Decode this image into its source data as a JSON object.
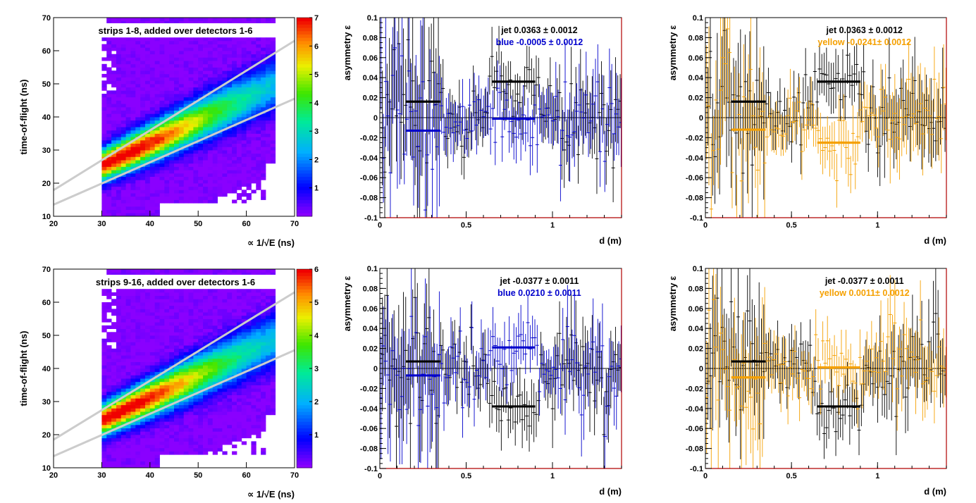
{
  "colors": {
    "jet": "#000000",
    "blue": "#0000cc",
    "yellow": "#f5a000",
    "heatmap_low": "#8a00ff",
    "heatmap_high": "#ff0000",
    "fit_lines": "#cccccc"
  },
  "chart_data": [
    {
      "type": "heatmap",
      "panel": "top-left",
      "title": "strips 1-8, added over detectors 1-6",
      "xlabel": "∝ 1/√E (ns)",
      "ylabel": "time-of-flight (ns)",
      "xlim": [
        20,
        70
      ],
      "ylim": [
        10,
        70
      ],
      "x_ticks": [
        "20",
        "30",
        "40",
        "50",
        "60",
        "70"
      ],
      "y_ticks": [
        "10",
        "20",
        "30",
        "40",
        "50",
        "60",
        "70"
      ],
      "colorbar_ticks": [
        "1",
        "2",
        "3",
        "4",
        "5",
        "6",
        "7"
      ],
      "colorbar_range": [
        0,
        7
      ],
      "band_lines": [
        {
          "x": [
            20,
            70
          ],
          "y": [
            17.9,
            63.0
          ]
        },
        {
          "x": [
            20,
            70
          ],
          "y": [
            13.5,
            45.5
          ]
        }
      ],
      "peak": {
        "x": 34,
        "y": 26
      }
    },
    {
      "type": "heatmap",
      "panel": "bottom-left",
      "title": "strips 9-16, added over detectors 1-6",
      "xlabel": "∝ 1/√E (ns)",
      "ylabel": "time-of-flight (ns)",
      "xlim": [
        20,
        70
      ],
      "ylim": [
        10,
        70
      ],
      "x_ticks": [
        "20",
        "30",
        "40",
        "50",
        "60",
        "70"
      ],
      "y_ticks": [
        "10",
        "20",
        "30",
        "40",
        "50",
        "60",
        "70"
      ],
      "colorbar_ticks": [
        "1",
        "2",
        "3",
        "4",
        "5",
        "6"
      ],
      "colorbar_range": [
        0,
        6
      ],
      "band_lines": [
        {
          "x": [
            20,
            70
          ],
          "y": [
            18.5,
            63.0
          ]
        },
        {
          "x": [
            20,
            70
          ],
          "y": [
            13.5,
            45.5
          ]
        }
      ],
      "peak": {
        "x": 34,
        "y": 25
      }
    },
    {
      "type": "scatter",
      "panel": "top-middle",
      "xlabel": "d (m)",
      "ylabel": "asymmetry ε",
      "xlim": [
        0,
        1.4
      ],
      "ylim": [
        -0.1,
        0.1
      ],
      "x_ticks": [
        "0",
        "0.5",
        "1"
      ],
      "y_ticks": [
        "-0.1",
        "-0.08",
        "-0.06",
        "-0.04",
        "-0.02",
        "0",
        "0.02",
        "0.04",
        "0.06",
        "0.08",
        "0.1"
      ],
      "legend": [
        {
          "name": "jet",
          "text": "jet  0.0363 ± 0.0012",
          "color": "#000000"
        },
        {
          "name": "blue",
          "text": "blue -0.0005 ± 0.0012",
          "color": "#0000cc"
        }
      ],
      "series": [
        {
          "name": "jet",
          "color": "#000000",
          "seed": 11,
          "steps": [
            {
              "x": [
                0.15,
                0.35
              ],
              "y": 0.016
            },
            {
              "x": [
                0.65,
                0.9
              ],
              "y": 0.036
            }
          ]
        },
        {
          "name": "blue",
          "color": "#0000cc",
          "seed": 23,
          "steps": [
            {
              "x": [
                0.15,
                0.35
              ],
              "y": -0.013
            },
            {
              "x": [
                0.65,
                0.9
              ],
              "y": -0.001
            }
          ]
        }
      ]
    },
    {
      "type": "scatter",
      "panel": "top-right",
      "xlabel": "d (m)",
      "ylabel": "asymmetry ε",
      "xlim": [
        0,
        1.4
      ],
      "ylim": [
        -0.1,
        0.1
      ],
      "x_ticks": [
        "0",
        "0.5",
        "1"
      ],
      "y_ticks": [
        "-0.1",
        "-0.08",
        "-0.06",
        "-0.04",
        "-0.02",
        "0",
        "0.02",
        "0.04",
        "0.06",
        "0.08",
        "0.1"
      ],
      "legend": [
        {
          "name": "jet",
          "text": "jet  0.0363 ± 0.0012",
          "color": "#000000"
        },
        {
          "name": "yellow",
          "text": "yellow -0.0241± 0.0012",
          "color": "#f5a000"
        }
      ],
      "series": [
        {
          "name": "jet",
          "color": "#000000",
          "seed": 11,
          "steps": [
            {
              "x": [
                0.15,
                0.35
              ],
              "y": 0.016
            },
            {
              "x": [
                0.65,
                0.9
              ],
              "y": 0.036
            }
          ]
        },
        {
          "name": "yellow",
          "color": "#f5a000",
          "seed": 37,
          "steps": [
            {
              "x": [
                0.15,
                0.35
              ],
              "y": -0.012
            },
            {
              "x": [
                0.65,
                0.9
              ],
              "y": -0.025
            }
          ]
        }
      ]
    },
    {
      "type": "scatter",
      "panel": "bottom-middle",
      "xlabel": "d (m)",
      "ylabel": "asymmetry ε",
      "xlim": [
        0,
        1.4
      ],
      "ylim": [
        -0.1,
        0.1
      ],
      "x_ticks": [
        "0",
        "0.5",
        "1"
      ],
      "y_ticks": [
        "-0.1",
        "-0.08",
        "-0.06",
        "-0.04",
        "-0.02",
        "0",
        "0.02",
        "0.04",
        "0.06",
        "0.08",
        "0.1"
      ],
      "legend": [
        {
          "name": "jet",
          "text": "jet -0.0377 ± 0.0011",
          "color": "#000000"
        },
        {
          "name": "blue",
          "text": "blue  0.0210 ± 0.0011",
          "color": "#0000cc"
        }
      ],
      "series": [
        {
          "name": "jet",
          "color": "#000000",
          "seed": 41,
          "steps": [
            {
              "x": [
                0.15,
                0.35
              ],
              "y": 0.007
            },
            {
              "x": [
                0.65,
                0.9
              ],
              "y": -0.038
            }
          ]
        },
        {
          "name": "blue",
          "color": "#0000cc",
          "seed": 53,
          "steps": [
            {
              "x": [
                0.15,
                0.35
              ],
              "y": -0.007
            },
            {
              "x": [
                0.65,
                0.9
              ],
              "y": 0.021
            }
          ]
        }
      ]
    },
    {
      "type": "scatter",
      "panel": "bottom-right",
      "xlabel": "d (m)",
      "ylabel": "asymmetry ε",
      "xlim": [
        0,
        1.4
      ],
      "ylim": [
        -0.1,
        0.1
      ],
      "x_ticks": [
        "0",
        "0.5",
        "1"
      ],
      "y_ticks": [
        "-0.1",
        "-0.08",
        "-0.06",
        "-0.04",
        "-0.02",
        "0",
        "0.02",
        "0.04",
        "0.06",
        "0.08",
        "0.1"
      ],
      "legend": [
        {
          "name": "jet",
          "text": "jet -0.0377 ± 0.0011",
          "color": "#000000"
        },
        {
          "name": "yellow",
          "text": "yellow  0.0011± 0.0012",
          "color": "#f5a000"
        }
      ],
      "series": [
        {
          "name": "jet",
          "color": "#000000",
          "seed": 41,
          "steps": [
            {
              "x": [
                0.15,
                0.35
              ],
              "y": 0.007
            },
            {
              "x": [
                0.65,
                0.9
              ],
              "y": -0.038
            }
          ]
        },
        {
          "name": "yellow",
          "color": "#f5a000",
          "seed": 67,
          "steps": [
            {
              "x": [
                0.15,
                0.35
              ],
              "y": -0.009
            },
            {
              "x": [
                0.65,
                0.9
              ],
              "y": 0.001
            }
          ]
        }
      ]
    }
  ]
}
